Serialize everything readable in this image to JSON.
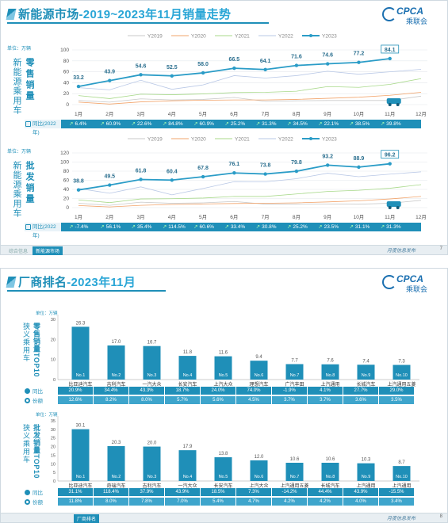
{
  "panel1": {
    "title_part1": "新能源市场",
    "title_part2": "-2019~2023年11月销量走势",
    "logo_text": "CPCA",
    "logo_sub": "乘联会",
    "footer_tabs": [
      "综合信息",
      "新能源市场",
      "",
      "",
      "",
      "",
      ""
    ],
    "footer_source": "月度信息发布",
    "page_num": "7",
    "retail": {
      "unit": "单位：万辆",
      "side_label_1": "新能源乘用车",
      "side_label_2": "零售销量",
      "yoy_label": "同比(2022年)",
      "yoy": [
        "6.4%",
        "60.9%",
        "22.6%",
        "84.8%",
        "60.9%",
        "25.2%",
        "31.3%",
        "34.5%",
        "22.1%",
        "38.5%",
        "39.8%",
        ""
      ]
    },
    "wholesale": {
      "unit": "单位：万辆",
      "side_label_1": "新能源乘用车",
      "side_label_2": "批发销量",
      "yoy_label": "同比(2022年)",
      "yoy": [
        "-7.4%",
        "56.1%",
        "35.4%",
        "114.5%",
        "60.6%",
        "33.4%",
        "30.8%",
        "25.2%",
        "23.5%",
        "31.1%",
        "31.3%",
        ""
      ]
    }
  },
  "panel2": {
    "title_part1": "厂商排名",
    "title_part2": "-2023年11月",
    "logo_text": "CPCA",
    "logo_sub": "乘联会",
    "footer_tabs": [
      "",
      "",
      "厂商排名",
      "",
      "",
      "",
      ""
    ],
    "footer_source": "月度信息发布",
    "page_num": "8",
    "retail": {
      "unit": "单位：万辆",
      "side_label_1": "狭义乘用车",
      "side_label_2": "零售销量TOP10",
      "row_yoy": "同比",
      "row_share": "份额",
      "yoy": [
        "20.9%",
        "34.4%",
        "43.3%",
        "18.7%",
        "24.0%",
        "74.0%",
        "-1.9%",
        "4.1%",
        "27.7%",
        "29.0%"
      ],
      "share": [
        "12.6%",
        "8.2%",
        "8.0%",
        "5.7%",
        "5.6%",
        "4.5%",
        "3.7%",
        "3.7%",
        "3.6%",
        "3.5%"
      ]
    },
    "wholesale": {
      "unit": "单位：万辆",
      "side_label_1": "狭义乘用车",
      "side_label_2": "批发销量TOP10",
      "row_yoy": "同比",
      "row_share": "份额",
      "yoy": [
        "31.1%",
        "118.4%",
        "37.9%",
        "43.9%",
        "18.5%",
        "7.3%",
        "-14.2%",
        "44.4%",
        "43.9%",
        "-15.5%"
      ],
      "share": [
        "11.8%",
        "8.0%",
        "7.8%",
        "7.0%",
        "5.4%",
        "4.7%",
        "4.2%",
        "4.2%",
        "4.0%",
        "3.4%"
      ]
    }
  },
  "colors": {
    "accent": "#1f8fb8",
    "bar": "#1f8fb8",
    "y2019": "#c9c9c9",
    "y2020": "#f2a46b",
    "y2021": "#a8d98a",
    "y2022": "#b9c8e6",
    "y2023": "#2a9cc7"
  },
  "chart_data": [
    {
      "type": "line",
      "ylabel": "单位：万辆",
      "x": [
        "1月",
        "2月",
        "3月",
        "4月",
        "5月",
        "6月",
        "7月",
        "8月",
        "9月",
        "10月",
        "11月",
        "12月"
      ],
      "ylim": [
        0,
        100
      ],
      "yticks": [
        0,
        20,
        40,
        60,
        80,
        100
      ],
      "legend": "top",
      "series": [
        {
          "name": "Y2019",
          "values": [
            7.5,
            4.5,
            10.5,
            8.5,
            9.5,
            13,
            6,
            7,
            7.5,
            7.5,
            7.5,
            15.5
          ]
        },
        {
          "name": "Y2020",
          "values": [
            4.5,
            1,
            5,
            7,
            8,
            8.5,
            8.5,
            9.5,
            11.5,
            13.5,
            17,
            22.5
          ]
        },
        {
          "name": "Y2021",
          "values": [
            16.5,
            11,
            19,
            18,
            19.5,
            22,
            22.5,
            24.5,
            33,
            31.5,
            37,
            47.5
          ]
        },
        {
          "name": "Y2022",
          "values": [
            31,
            27,
            44.5,
            28,
            36,
            53,
            48.5,
            53,
            61,
            55.5,
            60,
            64.5
          ]
        },
        {
          "name": "Y2023",
          "values": [
            33.2,
            43.9,
            54.6,
            52.5,
            58.0,
            66.5,
            64.1,
            71.6,
            74.6,
            77.2,
            84.1,
            null
          ]
        }
      ]
    },
    {
      "type": "line",
      "ylabel": "单位：万辆",
      "x": [
        "1月",
        "2月",
        "3月",
        "4月",
        "5月",
        "6月",
        "7月",
        "8月",
        "9月",
        "10月",
        "11月",
        "12月"
      ],
      "ylim": [
        0,
        120
      ],
      "yticks": [
        0,
        20,
        40,
        60,
        80,
        100,
        120
      ],
      "legend": "top",
      "series": [
        {
          "name": "Y2019",
          "values": [
            9.5,
            5,
            12,
            9.5,
            10.5,
            13.5,
            7.5,
            7.5,
            8,
            7.5,
            9.5,
            16
          ]
        },
        {
          "name": "Y2020",
          "values": [
            4.5,
            1.5,
            5,
            7,
            8,
            9,
            9.5,
            10.5,
            12.5,
            15,
            19,
            24.5
          ]
        },
        {
          "name": "Y2021",
          "values": [
            17,
            11,
            19,
            19.5,
            21,
            24.5,
            24.5,
            30,
            35.5,
            38,
            42.5,
            50.5
          ]
        },
        {
          "name": "Y2022",
          "values": [
            42,
            31.5,
            45.5,
            28,
            42,
            57,
            56.5,
            63.5,
            75.5,
            67.8,
            73.5,
            78.5
          ]
        },
        {
          "name": "Y2023",
          "values": [
            38.8,
            49.5,
            61.8,
            60.4,
            67.8,
            76.1,
            73.8,
            79.8,
            93.2,
            88.9,
            96.2,
            null
          ]
        }
      ]
    },
    {
      "type": "bar",
      "ylabel": "单位：万辆",
      "categories": [
        "比亚迪汽车",
        "吉利汽车",
        "一汽大众",
        "长安汽车",
        "上汽大众",
        "理想汽车",
        "广汽丰田",
        "上汽通用",
        "长城汽车",
        "上汽通用五菱"
      ],
      "rank_labels": [
        "No.1",
        "No.2",
        "No.3",
        "No.4",
        "No.5",
        "No.6",
        "No.7",
        "No.8",
        "No.9",
        "No.10"
      ],
      "values": [
        26.3,
        17.0,
        16.7,
        11.8,
        11.6,
        9.4,
        7.7,
        7.6,
        7.4,
        7.3
      ],
      "ylim": [
        0,
        30
      ],
      "yticks": [
        0,
        10,
        20,
        30
      ]
    },
    {
      "type": "bar",
      "ylabel": "单位：万辆",
      "categories": [
        "比亚迪汽车",
        "奇瑞汽车",
        "吉利汽车",
        "一汽大众",
        "长安汽车",
        "上汽大众",
        "上汽通用五菱",
        "长城汽车",
        "上汽通用",
        "上汽通用"
      ],
      "rank_labels": [
        "No.1",
        "No.2",
        "No.3",
        "No.4",
        "No.5",
        "No.6",
        "No.7",
        "No.8",
        "No.9",
        "No.10"
      ],
      "values": [
        30.1,
        20.3,
        20.0,
        17.9,
        13.8,
        12.0,
        10.6,
        10.6,
        10.3,
        8.7
      ],
      "ylim": [
        0,
        35
      ],
      "yticks": [
        0,
        5,
        10,
        15,
        20,
        25,
        30,
        35
      ]
    }
  ]
}
